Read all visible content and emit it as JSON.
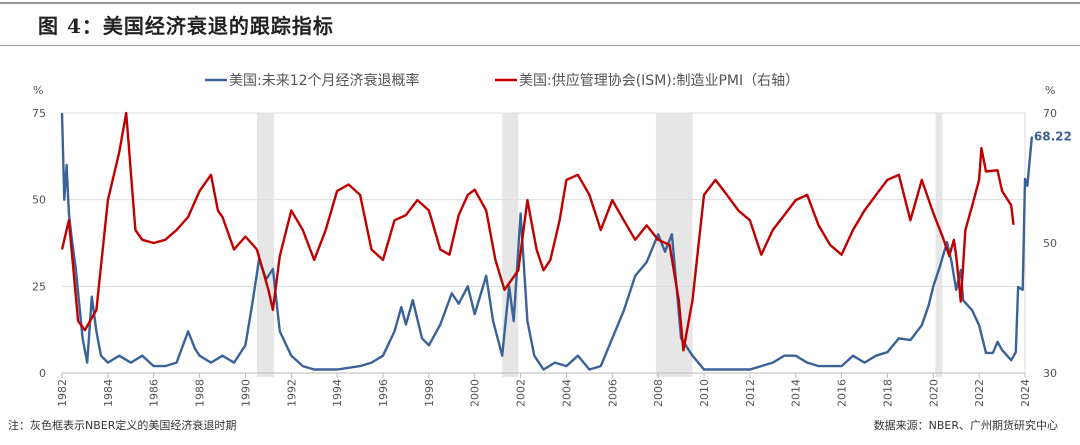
{
  "header": {
    "title": "图 4：美国经济衰退的跟踪指标"
  },
  "footer": {
    "note": "注：灰色框表示NBER定义的美国经济衰退时期",
    "source": "数据来源：NBER、广州期货研究中心"
  },
  "chart_data": {
    "type": "line",
    "title": "",
    "xlabel": "",
    "ylabel_left": "%",
    "ylabel_right": "%",
    "xlim": [
      1982,
      2024
    ],
    "ylim_left": [
      0,
      75
    ],
    "ylim_right": [
      30,
      70
    ],
    "x_ticks": [
      "1982",
      "1984",
      "1986",
      "1988",
      "1990",
      "1992",
      "1994",
      "1996",
      "1998",
      "2000",
      "2002",
      "2004",
      "2006",
      "2008",
      "2010",
      "2012",
      "2014",
      "2016",
      "2018",
      "2020",
      "2022",
      "2024"
    ],
    "y_ticks_left": [
      "0",
      "25",
      "50",
      "75"
    ],
    "y_ticks_right": [
      "30",
      "50",
      "70"
    ],
    "grid": true,
    "legend_position": "top",
    "recessions": [
      [
        1990.5,
        1991.25
      ],
      [
        2001.2,
        2001.9
      ],
      [
        2007.9,
        2009.5
      ],
      [
        2020.1,
        2020.4
      ]
    ],
    "recession_color": "#e6e6e6",
    "end_label": "68.22",
    "series": [
      {
        "name": "美国:未来12个月经济衰退概率",
        "axis": "left",
        "color": "#3a6298",
        "x": [
          1982.0,
          1982.1,
          1982.2,
          1982.3,
          1982.4,
          1982.6,
          1982.9,
          1983.1,
          1983.3,
          1983.5,
          1983.7,
          1984.0,
          1984.5,
          1985.0,
          1985.5,
          1986.0,
          1986.5,
          1987.0,
          1987.5,
          1987.8,
          1988.0,
          1988.5,
          1989.0,
          1989.5,
          1990.0,
          1990.3,
          1990.6,
          1990.9,
          1991.2,
          1991.5,
          1992.0,
          1992.5,
          1993.0,
          1994.0,
          1995.0,
          1995.5,
          1996.0,
          1996.5,
          1996.8,
          1997.0,
          1997.3,
          1997.7,
          1998.0,
          1998.5,
          1999.0,
          1999.3,
          1999.7,
          2000.0,
          2000.5,
          2000.8,
          2001.2,
          2001.5,
          2001.7,
          2002.0,
          2002.3,
          2002.6,
          2003.0,
          2003.5,
          2004.0,
          2004.5,
          2005.0,
          2005.5,
          2006.0,
          2006.5,
          2007.0,
          2007.5,
          2008.0,
          2008.3,
          2008.6,
          2009.0,
          2009.5,
          2010.0,
          2011.0,
          2012.0,
          2012.5,
          2013.0,
          2013.5,
          2014.0,
          2014.5,
          2015.0,
          2016.0,
          2016.5,
          2017.0,
          2017.5,
          2018.0,
          2018.5,
          2019.0,
          2019.5,
          2019.8,
          2020.0,
          2020.3,
          2020.6,
          2020.8,
          2021.0,
          2021.2,
          2021.3,
          2021.7,
          2022.0,
          2022.3,
          2022.6,
          2022.8,
          2023.0,
          2023.4,
          2023.6,
          2023.7,
          2023.9,
          2024.0,
          2024.1,
          2024.3
        ],
        "values": [
          75,
          50,
          60,
          46,
          40,
          30,
          10,
          3,
          22,
          12,
          5,
          3,
          5,
          3,
          5,
          2,
          2,
          3,
          12,
          7,
          5,
          3,
          5,
          3,
          8,
          20,
          33,
          27,
          30,
          12,
          5,
          2,
          1,
          1,
          2,
          3,
          5,
          12,
          19,
          14,
          21,
          10,
          8,
          14,
          23,
          20,
          25,
          17,
          28,
          15,
          5,
          25,
          15,
          46,
          15,
          5,
          1,
          3,
          2,
          5,
          1,
          2,
          10,
          18,
          28,
          32,
          40,
          35,
          40,
          10,
          5,
          1,
          1,
          1,
          2,
          3,
          5,
          5,
          3,
          2,
          2,
          5,
          3,
          5,
          6,
          10,
          9.5,
          13.8,
          19.6,
          25,
          31,
          37.8,
          32,
          24,
          29.7,
          21,
          18,
          13.8,
          5.8,
          5.8,
          9,
          6.6,
          3.7,
          6,
          24.8,
          24,
          56,
          54,
          68.22
        ]
      },
      {
        "name": "美国:供应管理协会(ISM):制造业PMI（右轴）",
        "axis": "right",
        "color": "#c00000",
        "x": [
          1982.0,
          1982.3,
          1982.7,
          1983.0,
          1983.5,
          1984.0,
          1984.5,
          1984.8,
          1985.2,
          1985.5,
          1986.0,
          1986.5,
          1987.0,
          1987.5,
          1988.0,
          1988.5,
          1988.8,
          1989.0,
          1989.5,
          1990.0,
          1990.5,
          1991.0,
          1991.2,
          1991.5,
          1992.0,
          1992.5,
          1993.0,
          1993.5,
          1994.0,
          1994.5,
          1995.0,
          1995.5,
          1996.0,
          1996.5,
          1997.0,
          1997.5,
          1998.0,
          1998.5,
          1998.9,
          1999.3,
          1999.7,
          2000.0,
          2000.5,
          2000.9,
          2001.3,
          2001.9,
          2002.3,
          2002.7,
          2003.0,
          2003.3,
          2003.7,
          2004.0,
          2004.5,
          2005.0,
          2005.5,
          2006.0,
          2006.5,
          2007.0,
          2007.5,
          2008.0,
          2008.5,
          2008.9,
          2009.1,
          2009.5,
          2010.0,
          2010.5,
          2011.0,
          2011.5,
          2012.0,
          2012.5,
          2013.0,
          2013.5,
          2014.0,
          2014.5,
          2015.0,
          2015.5,
          2016.0,
          2016.5,
          2017.0,
          2017.5,
          2018.0,
          2018.5,
          2019.0,
          2019.5,
          2020.0,
          2020.4,
          2020.7,
          2020.9,
          2021.0,
          2021.2,
          2021.4,
          2021.7,
          2022.0,
          2022.1,
          2022.3,
          2022.8,
          2023.0,
          2023.4,
          2023.5
        ],
        "values": [
          49,
          53.5,
          38,
          36.6,
          39.7,
          56.6,
          64,
          70,
          52,
          50.5,
          50,
          50.5,
          52,
          54,
          58,
          60.5,
          55,
          54,
          49,
          51,
          49,
          42.8,
          39.7,
          48,
          55,
          52,
          47.4,
          52,
          58,
          59,
          57.4,
          49,
          47.4,
          53.5,
          54.3,
          56.6,
          55,
          49,
          48.2,
          54.3,
          57.4,
          58.2,
          55,
          47.4,
          42.8,
          45.8,
          56.6,
          49,
          45.8,
          47.4,
          53.5,
          59.7,
          60.5,
          57.4,
          52,
          56.6,
          53.5,
          50.5,
          52.7,
          50.5,
          49.7,
          41.2,
          33.5,
          41.2,
          57.4,
          59.7,
          57.4,
          55,
          53.5,
          48.2,
          52,
          54.3,
          56.6,
          57.4,
          52.7,
          49.7,
          48.2,
          52,
          55,
          57.4,
          59.7,
          60.5,
          53.5,
          59.7,
          54.6,
          51,
          48,
          50.5,
          48,
          41,
          52,
          55.8,
          59.7,
          64.6,
          61,
          61.2,
          58,
          55.8,
          52.8
        ]
      }
    ]
  }
}
